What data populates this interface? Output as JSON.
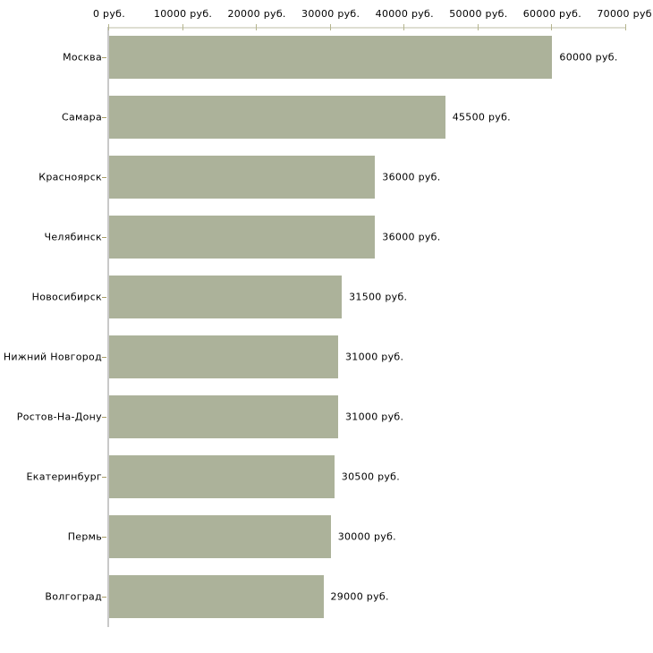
{
  "chart_data": {
    "type": "bar",
    "orientation": "horizontal",
    "title": "",
    "xlabel": "",
    "ylabel": "",
    "categories": [
      "Москва",
      "Самара",
      "Красноярск",
      "Челябинск",
      "Новосибирск",
      "Нижний Новгород",
      "Ростов-На-Дону",
      "Екатеринбург",
      "Пермь",
      "Волгоград"
    ],
    "values": [
      60000,
      45500,
      36000,
      36000,
      31500,
      31000,
      31000,
      30500,
      30000,
      29000
    ],
    "value_labels": [
      "60000 руб.",
      "45500 руб.",
      "36000 руб.",
      "36000 руб.",
      "31500 руб.",
      "31000 руб.",
      "31000 руб.",
      "30500 руб.",
      "30000 руб.",
      "29000 руб."
    ],
    "x_axis": {
      "position": "top",
      "min": 0,
      "max": 70000,
      "ticks": [
        0,
        10000,
        20000,
        30000,
        40000,
        50000,
        60000,
        70000
      ],
      "tick_labels": [
        "0 руб.",
        "10000 руб.",
        "20000 руб.",
        "30000 руб.",
        "40000 руб.",
        "50000 руб.",
        "60000 руб.",
        "70000 руб."
      ]
    },
    "grid": false,
    "legend": false,
    "colors": {
      "bar": "#ACB29A",
      "x_axis_line": "#DEDED2",
      "y_axis_line": "#C9C9C9",
      "x_tick": "#B5B58F",
      "category_tick": "#A89C66",
      "text": "#000000",
      "background": "#FFFFFF"
    }
  }
}
